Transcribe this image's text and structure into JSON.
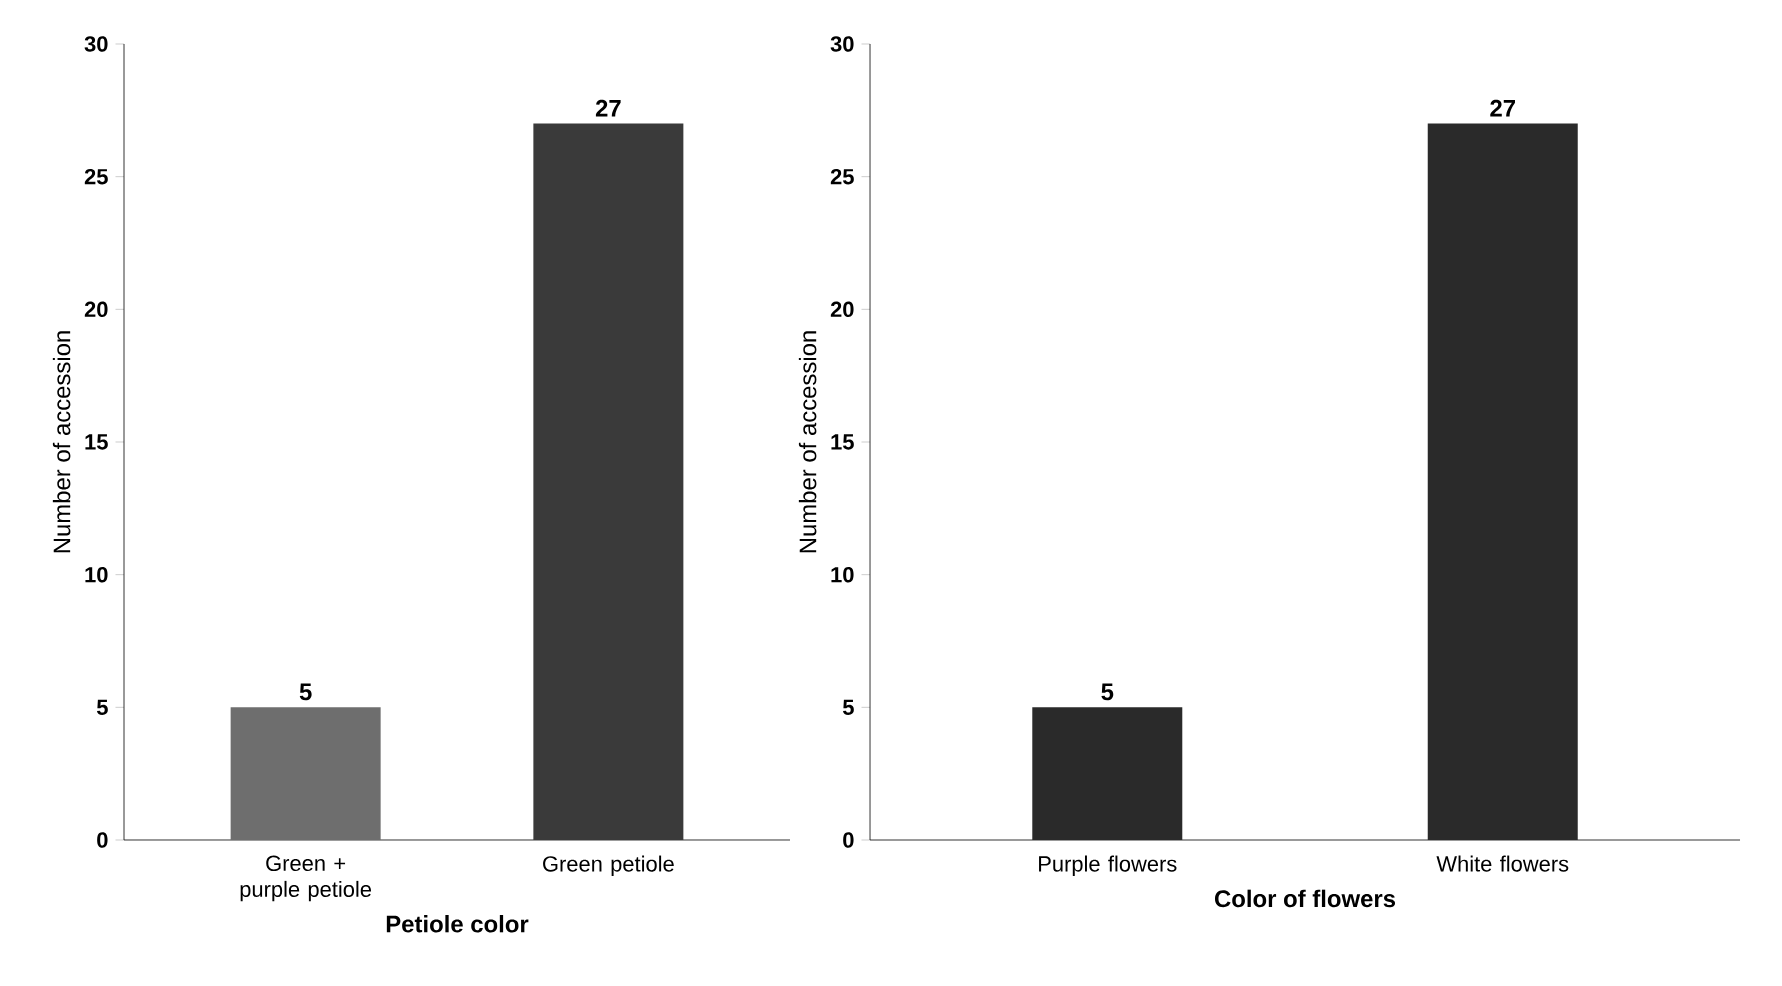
{
  "chart_data": [
    {
      "type": "bar",
      "categories": [
        "Green + purple petiole",
        "Green petiole"
      ],
      "values": [
        5,
        27
      ],
      "colors": [
        "#6e6e6e",
        "#3a3a3a"
      ],
      "xlabel": "Petiole color",
      "ylabel": "Number of accession",
      "ylim": [
        0,
        30
      ],
      "yticks": [
        0,
        5,
        10,
        15,
        20,
        25,
        30
      ],
      "data_labels": true
    },
    {
      "type": "bar",
      "categories": [
        "Purple flowers",
        "White flowers"
      ],
      "values": [
        5,
        27
      ],
      "colors": [
        "#2a2a2a",
        "#2a2a2a"
      ],
      "xlabel": "Color of flowers",
      "ylabel": "Number of accession",
      "ylim": [
        0,
        30
      ],
      "yticks": [
        0,
        5,
        10,
        15,
        20,
        25,
        30
      ],
      "data_labels": true
    }
  ]
}
